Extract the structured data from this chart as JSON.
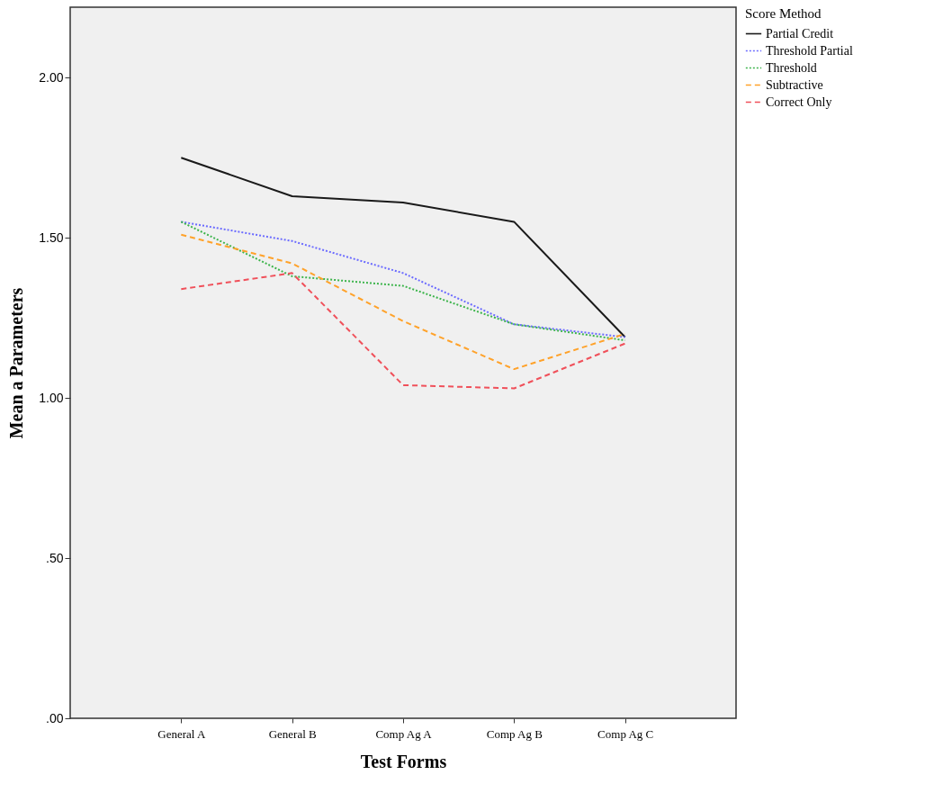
{
  "chart_data": {
    "type": "line",
    "xlabel": "Test Forms",
    "ylabel": "Mean a Parameters",
    "legend_title": "Score Method",
    "legend": "top right",
    "grid": false,
    "marker": "none",
    "categories": [
      "General A",
      "General B",
      "Comp Ag A",
      "Comp Ag B",
      "Comp Ag C"
    ],
    "ylim": [
      0,
      2.22
    ],
    "yticks": [
      {
        "value": 0,
        "label": ".00"
      },
      {
        "value": 0.5,
        "label": ".50"
      },
      {
        "value": 1,
        "label": "1.00"
      },
      {
        "value": 1.5,
        "label": "1.50"
      },
      {
        "value": 2,
        "label": "2.00"
      }
    ],
    "series": [
      {
        "name": "Partial Credit",
        "color": "#1a1a1a",
        "line_style": "solid",
        "values": [
          1.75,
          1.63,
          1.61,
          1.55,
          1.19
        ]
      },
      {
        "name": "Threshold Partial",
        "color": "#6b6bff",
        "line_style": "dotted",
        "values": [
          1.55,
          1.49,
          1.39,
          1.23,
          1.19
        ]
      },
      {
        "name": "Threshold",
        "color": "#3cb44b",
        "line_style": "dotted",
        "values": [
          1.55,
          1.38,
          1.35,
          1.23,
          1.18
        ]
      },
      {
        "name": "Subtractive",
        "color": "#ffa22a",
        "line_style": "dashed",
        "values": [
          1.51,
          1.42,
          1.24,
          1.09,
          1.2
        ]
      },
      {
        "name": "Correct Only",
        "color": "#f0505a",
        "line_style": "dashed",
        "values": [
          1.34,
          1.39,
          1.04,
          1.03,
          1.17
        ]
      }
    ]
  }
}
